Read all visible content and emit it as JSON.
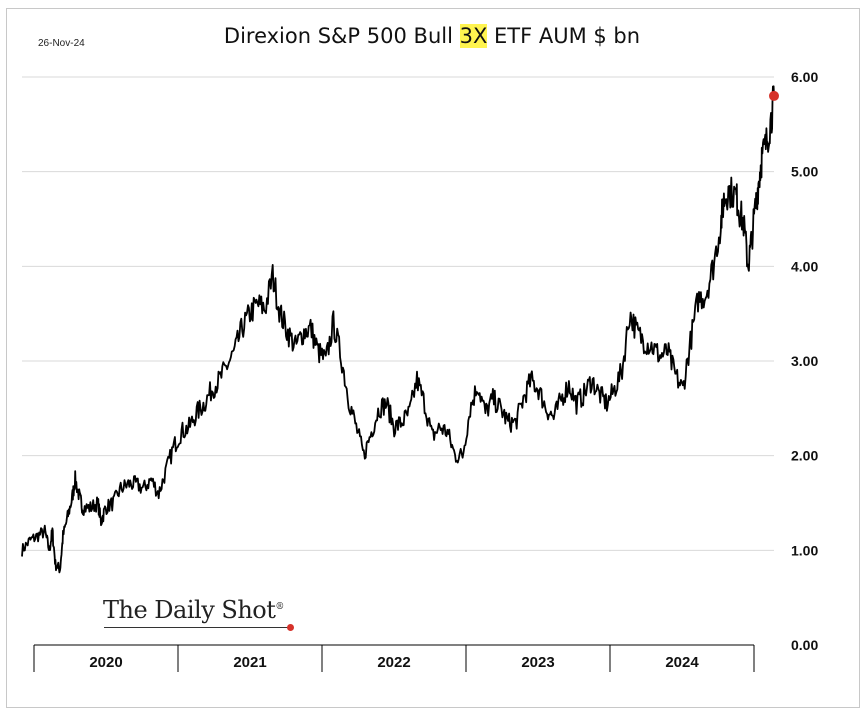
{
  "header": {
    "date": "26-Nov-24",
    "title_pre": "Direxion S&P 500 Bull ",
    "title_hl": "3X",
    "title_post": " ETF AUM $ bn"
  },
  "branding": {
    "logo_text": "The Daily Shot",
    "logo_mark": "®"
  },
  "colors": {
    "line": "#000000",
    "last_point": "#d6322a",
    "grid": "#d9d9d9",
    "highlight": "#fff44f"
  },
  "chart_data": {
    "type": "line",
    "title": "Direxion S&P 500 Bull 3X ETF AUM $ bn",
    "xlabel": "",
    "ylabel": "",
    "xlim": [
      2020.0,
      2024.95
    ],
    "ylim": [
      0,
      6
    ],
    "yticks": [
      0,
      1,
      2,
      3,
      4,
      5,
      6
    ],
    "ytick_labels": [
      "0.00",
      "1.00",
      "2.00",
      "3.00",
      "4.00",
      "5.00",
      "6.00"
    ],
    "xtick_labels": [
      "2020",
      "2021",
      "2022",
      "2023",
      "2024"
    ],
    "y_axis_side": "right",
    "grid": "horizontal",
    "highlight_last_point": true,
    "series": [
      {
        "x": [
          2020.0,
          2020.05,
          2020.1,
          2020.15,
          2020.18,
          2020.2,
          2020.22,
          2020.25,
          2020.27,
          2020.3,
          2020.33,
          2020.35,
          2020.38,
          2020.4,
          2020.45,
          2020.5,
          2020.52,
          2020.55,
          2020.6,
          2020.65,
          2020.7,
          2020.75,
          2020.8,
          2020.85,
          2020.9,
          2020.95,
          2021.0,
          2021.05,
          2021.1,
          2021.15,
          2021.2,
          2021.25,
          2021.3,
          2021.35,
          2021.4,
          2021.45,
          2021.5,
          2021.55,
          2021.6,
          2021.65,
          2021.7,
          2021.75,
          2021.8,
          2021.85,
          2021.9,
          2021.95,
          2022.0,
          2022.05,
          2022.1,
          2022.15,
          2022.2,
          2022.25,
          2022.3,
          2022.35,
          2022.4,
          2022.45,
          2022.5,
          2022.55,
          2022.6,
          2022.65,
          2022.7,
          2022.75,
          2022.8,
          2022.85,
          2022.9,
          2022.95,
          2023.0,
          2023.05,
          2023.1,
          2023.15,
          2023.2,
          2023.25,
          2023.3,
          2023.35,
          2023.4,
          2023.45,
          2023.5,
          2023.55,
          2023.6,
          2023.65,
          2023.7,
          2023.75,
          2023.8,
          2023.85,
          2023.9,
          2023.95,
          2024.0,
          2024.05,
          2024.1,
          2024.15,
          2024.2,
          2024.25,
          2024.3,
          2024.35,
          2024.4,
          2024.45,
          2024.5,
          2024.55,
          2024.6,
          2024.65,
          2024.7,
          2024.75,
          2024.8,
          2024.85,
          2024.9
        ],
        "y": [
          1.0,
          1.1,
          1.15,
          1.2,
          1.0,
          1.2,
          0.85,
          0.8,
          1.15,
          1.35,
          1.55,
          1.75,
          1.55,
          1.45,
          1.45,
          1.5,
          1.3,
          1.45,
          1.5,
          1.65,
          1.7,
          1.7,
          1.65,
          1.75,
          1.6,
          1.85,
          2.1,
          2.25,
          2.3,
          2.45,
          2.55,
          2.7,
          2.8,
          2.95,
          3.1,
          3.35,
          3.5,
          3.6,
          3.55,
          3.9,
          3.5,
          3.3,
          3.15,
          3.3,
          3.35,
          3.1,
          3.0,
          3.4,
          3.05,
          2.6,
          2.3,
          2.0,
          2.25,
          2.5,
          2.55,
          2.3,
          2.35,
          2.45,
          2.8,
          2.55,
          2.2,
          2.3,
          2.25,
          2.0,
          2.0,
          2.5,
          2.75,
          2.45,
          2.6,
          2.5,
          2.35,
          2.35,
          2.6,
          2.8,
          2.7,
          2.5,
          2.4,
          2.6,
          2.75,
          2.55,
          2.65,
          2.8,
          2.65,
          2.55,
          2.7,
          2.9,
          3.5,
          3.3,
          3.2,
          3.15,
          3.05,
          3.1,
          2.85,
          2.7,
          3.2,
          3.65,
          3.7,
          3.9,
          3.85,
          3.55,
          3.5,
          3.75,
          4.05,
          4.2,
          3.85
        ],
        "extra_x": [
          2024.55,
          2024.6,
          2024.62,
          2024.65,
          2024.7,
          2024.72,
          2024.75,
          2024.78,
          2024.8,
          2024.83,
          2024.85,
          2024.87,
          2024.9,
          2024.93,
          2024.95
        ],
        "extra_y": [
          4.0,
          4.45,
          4.7,
          4.8,
          4.75,
          4.6,
          4.45,
          4.0,
          4.25,
          4.65,
          4.9,
          5.15,
          5.3,
          5.55,
          5.8
        ]
      }
    ]
  }
}
